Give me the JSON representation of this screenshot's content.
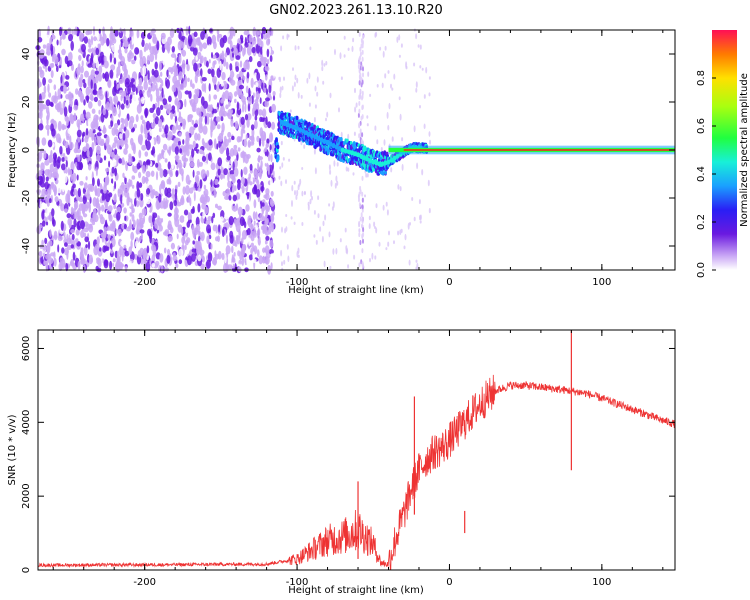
{
  "title": "GN02.2023.261.13.10.R20",
  "chart_data": [
    {
      "type": "heatmap",
      "title": "",
      "xlabel": "Height of straight line (km)",
      "ylabel": "Frequency (Hz)",
      "xlim": [
        -270,
        148
      ],
      "ylim": [
        -50,
        50
      ],
      "xticks": [
        -200,
        -100,
        0,
        100
      ],
      "yticks": [
        -40,
        -20,
        0,
        20,
        40
      ],
      "grid": false,
      "colorbar": {
        "label": "Normalized spectral amplitude",
        "range": [
          0,
          1
        ],
        "ticks": [
          "0.0",
          "0.2",
          "0.4",
          "0.6",
          "0.8"
        ],
        "colormap": "white-purple-blue-cyan-green-yellow-red"
      },
      "regions": [
        {
          "x": [
            -270,
            -115
          ],
          "y": [
            -50,
            50
          ],
          "description_level": 0.25,
          "kind": "broadband noise"
        },
        {
          "x": [
            -115,
            -40
          ],
          "y": [
            -15,
            18
          ],
          "description_level": 0.4,
          "kind": "descending tone"
        },
        {
          "x": [
            -40,
            148
          ],
          "y": [
            -1,
            1
          ],
          "description_level": 1.0,
          "kind": "carrier line"
        }
      ],
      "tone_track": {
        "x": [
          -112,
          -100,
          -90,
          -80,
          -70,
          -60,
          -50,
          -45,
          -40,
          -35,
          -30,
          -25,
          -20,
          -10,
          0,
          20,
          60,
          100,
          148
        ],
        "y": [
          12,
          9,
          6,
          3,
          0,
          -2,
          -5,
          -6,
          -5,
          -3,
          -1,
          1,
          1,
          0.5,
          0,
          0,
          0,
          0,
          0
        ]
      }
    },
    {
      "type": "line",
      "title": "",
      "xlabel": "Height of straight line (km)",
      "ylabel": "SNR (10 * v/v)",
      "xlim": [
        -270,
        148
      ],
      "ylim": [
        0,
        6500
      ],
      "xticks": [
        -200,
        -100,
        0,
        100
      ],
      "yticks": [
        0,
        2000,
        4000,
        6000
      ],
      "grid": false,
      "series": [
        {
          "color": "#ee3333",
          "x": [
            -270,
            -200,
            -120,
            -100,
            -90,
            -80,
            -70,
            -60,
            -50,
            -45,
            -40,
            -35,
            -30,
            -25,
            -20,
            -15,
            -10,
            -5,
            0,
            10,
            20,
            30,
            40,
            50,
            60,
            70,
            80,
            90,
            100,
            110,
            120,
            130,
            140,
            148
          ],
          "y": [
            130,
            140,
            160,
            300,
            550,
            800,
            900,
            1100,
            700,
            200,
            150,
            900,
            1500,
            2200,
            2700,
            3000,
            3200,
            3300,
            3500,
            4000,
            4500,
            4850,
            5000,
            5000,
            4950,
            4900,
            4850,
            4780,
            4650,
            4500,
            4350,
            4200,
            4050,
            3950
          ]
        }
      ],
      "spikes": [
        {
          "x": 80,
          "y_top": 6500,
          "y_bottom": 2700
        },
        {
          "x": -60,
          "y_top": 2400,
          "y_bottom": 300
        },
        {
          "x": -23,
          "y_top": 4700,
          "y_bottom": 1500
        },
        {
          "x": 10,
          "y_top": 1600,
          "y_bottom": 1000
        }
      ]
    }
  ]
}
